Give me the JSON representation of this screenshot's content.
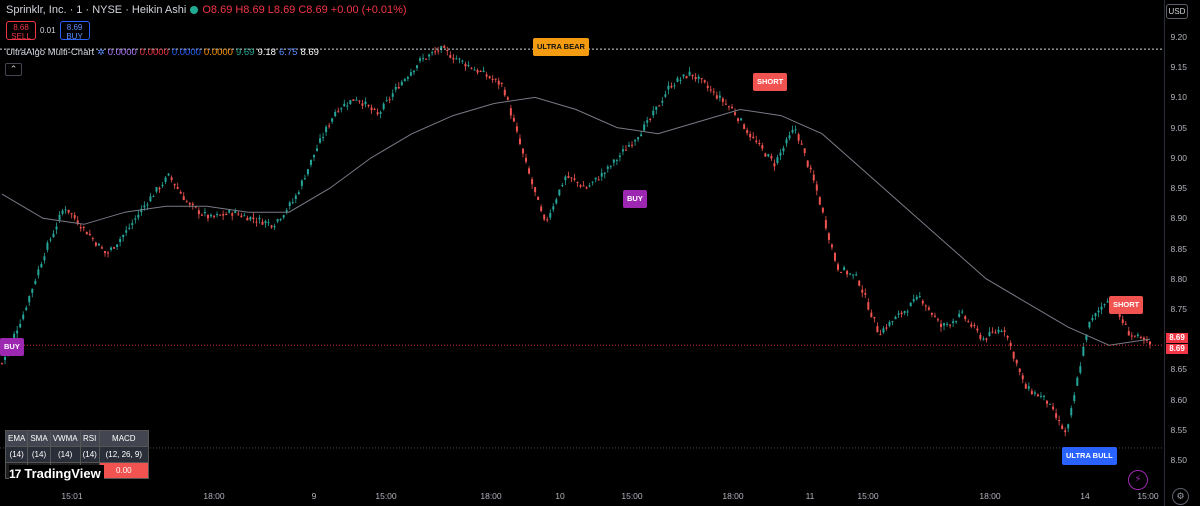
{
  "header": {
    "symbol": "Sprinklr, Inc. · 1 · NYSE · Heikin Ashi",
    "ohlc": "O8.69 H8.69 L8.69 C8.69 +0.00 (+0.01%)",
    "sell_price": "8.68",
    "sell_label": "SELL",
    "spread": "0.01",
    "buy_price": "8.69",
    "buy_label": "BUY",
    "currency": "USD"
  },
  "indicator": {
    "name": "UltraAlgo Multi-Chart",
    "values": [
      "0.0000",
      "0.0000",
      "0.0000",
      "0.0000",
      "9.69",
      "9.18",
      "6.75",
      "8.69"
    ],
    "value_colors": [
      "#b47cff",
      "#f23645",
      "#2962ff",
      "#ff9800",
      "#22ab94",
      "#ffffff",
      "#5b8cff",
      "#ffffff"
    ]
  },
  "signals": [
    {
      "label": "ULTRA BEAR",
      "color": "orange"
    },
    {
      "label": "SHORT",
      "color": "red"
    },
    {
      "label": "BUY",
      "color": "purple"
    },
    {
      "label": "BUY",
      "color": "purple"
    },
    {
      "label": "SHORT",
      "color": "red"
    },
    {
      "label": "ULTRA BULL",
      "color": "blue"
    }
  ],
  "yaxis": {
    "labels": [
      "9.20",
      "9.15",
      "9.10",
      "9.05",
      "9.00",
      "8.95",
      "8.90",
      "8.85",
      "8.80",
      "8.75",
      "8.70",
      "8.65",
      "8.60",
      "8.55",
      "8.50"
    ],
    "current_price": "8.69",
    "current_price2": "8.69"
  },
  "xaxis": {
    "labels": [
      "15:01",
      "18:00",
      "9",
      "15:00",
      "18:00",
      "10",
      "15:00",
      "18:00",
      "11",
      "15:00",
      "18:00",
      "14",
      "15:00"
    ]
  },
  "table": {
    "headers": [
      "EMA",
      "SMA",
      "VWMA",
      "RSI",
      "MACD"
    ],
    "params": [
      "(14)",
      "(14)",
      "(14)",
      "(14)",
      "(12, 26, 9)"
    ],
    "values": [
      "",
      "",
      "",
      "8",
      "0.00"
    ]
  },
  "branding": {
    "logo_text": "TradingView"
  },
  "chart_data": {
    "type": "candlestick",
    "title": "Sprinklr, Inc. · 1 · NYSE · Heikin Ashi",
    "ylim": [
      8.49,
      9.22
    ],
    "yticks": [
      9.2,
      9.15,
      9.1,
      9.05,
      9.0,
      8.95,
      8.9,
      8.85,
      8.8,
      8.75,
      8.7,
      8.65,
      8.6,
      8.55,
      8.5
    ],
    "price_path": [
      8.66,
      8.74,
      8.84,
      8.92,
      8.88,
      8.84,
      8.88,
      8.93,
      8.97,
      8.92,
      8.9,
      8.91,
      8.9,
      8.89,
      8.93,
      9.01,
      9.08,
      9.1,
      9.07,
      9.12,
      9.16,
      9.18,
      9.16,
      9.14,
      9.12,
      9.0,
      8.89,
      8.97,
      8.95,
      8.98,
      9.02,
      9.06,
      9.12,
      9.14,
      9.11,
      9.08,
      9.03,
      8.99,
      9.05,
      8.95,
      8.82,
      8.8,
      8.71,
      8.74,
      8.77,
      8.72,
      8.74,
      8.7,
      8.72,
      8.62,
      8.6,
      8.54,
      8.72,
      8.77,
      8.71,
      8.69
    ],
    "ma_path": [
      8.94,
      8.9,
      8.89,
      8.91,
      8.92,
      8.92,
      8.91,
      8.91,
      8.95,
      9.0,
      9.04,
      9.07,
      9.09,
      9.1,
      9.08,
      9.05,
      9.04,
      9.06,
      9.08,
      9.07,
      9.04,
      8.98,
      8.92,
      8.86,
      8.8,
      8.76,
      8.72,
      8.69,
      8.7
    ],
    "dotted_lines": [
      9.18,
      8.69,
      8.52
    ],
    "current_price": 8.69
  }
}
